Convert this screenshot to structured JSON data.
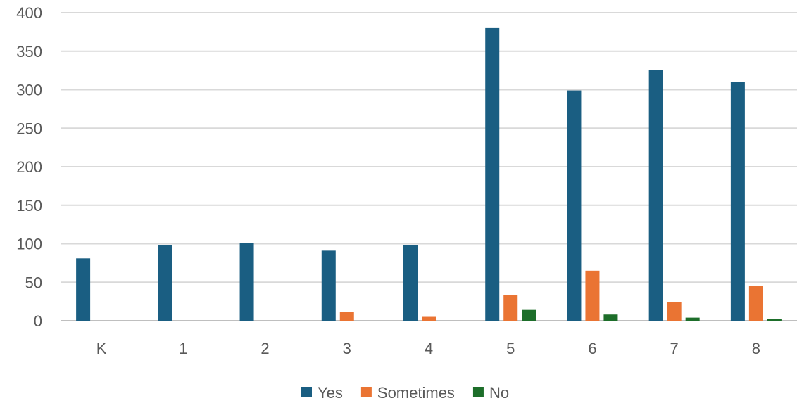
{
  "chart_data": {
    "type": "bar",
    "title": "",
    "xlabel": "",
    "ylabel": "",
    "categories": [
      "K",
      "1",
      "2",
      "3",
      "4",
      "5",
      "6",
      "7",
      "8"
    ],
    "ylim": [
      0,
      400
    ],
    "yticks": [
      0,
      50,
      100,
      150,
      200,
      250,
      300,
      350,
      400
    ],
    "grid": true,
    "legend_position": "bottom",
    "series": [
      {
        "name": "Yes",
        "color": "#1a5e82",
        "values": [
          81,
          98,
          101,
          91,
          98,
          380,
          299,
          326,
          310
        ]
      },
      {
        "name": "Sometimes",
        "color": "#ea7433",
        "values": [
          0,
          0,
          0,
          11,
          5,
          33,
          65,
          24,
          45
        ]
      },
      {
        "name": "No",
        "color": "#1d6e2a",
        "values": [
          0,
          0,
          0,
          0,
          0,
          14,
          8,
          4,
          2
        ]
      }
    ]
  }
}
